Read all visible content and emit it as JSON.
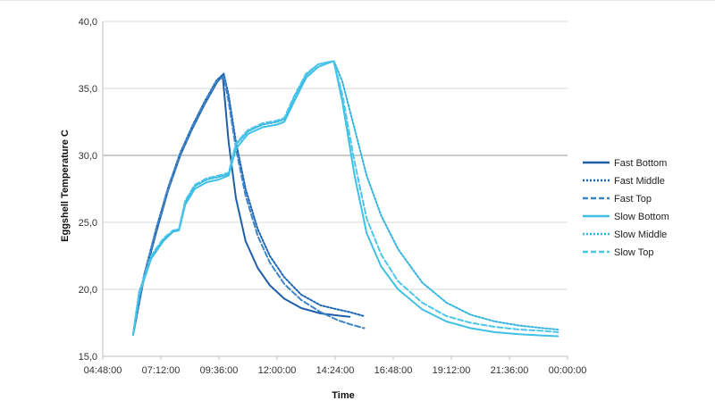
{
  "chart_data": {
    "type": "line",
    "title": "",
    "xlabel": "Time",
    "ylabel": "Eggshell Temperature C",
    "ylim": [
      15,
      40
    ],
    "xlim_hours": [
      4.8,
      24.0
    ],
    "x_tick_labels": [
      "04:48:00",
      "07:12:00",
      "09:36:00",
      "12:00:00",
      "14:24:00",
      "16:48:00",
      "19:12:00",
      "21:36:00",
      "00:00:00"
    ],
    "y_tick_labels": [
      "15,0",
      "20,0",
      "25,0",
      "30,0",
      "35,0",
      "40,0"
    ],
    "y_ticks": [
      15,
      20,
      25,
      30,
      35,
      40
    ],
    "grid": "horizontal",
    "legend_position": "right",
    "series": [
      {
        "name": "Fast Bottom",
        "color": "#1f5fa8",
        "dash": "solid",
        "points": [
          [
            6.05,
            16.6
          ],
          [
            6.5,
            20.8
          ],
          [
            7.0,
            24.2
          ],
          [
            7.5,
            27.4
          ],
          [
            8.0,
            30.0
          ],
          [
            8.5,
            32.0
          ],
          [
            9.0,
            33.8
          ],
          [
            9.5,
            35.4
          ],
          [
            9.75,
            36.0
          ],
          [
            10.0,
            31.0
          ],
          [
            10.3,
            26.8
          ],
          [
            10.7,
            23.6
          ],
          [
            11.2,
            21.6
          ],
          [
            11.7,
            20.3
          ],
          [
            12.3,
            19.3
          ],
          [
            13.0,
            18.6
          ],
          [
            13.8,
            18.2
          ],
          [
            14.5,
            18.05
          ],
          [
            15.0,
            17.95
          ]
        ]
      },
      {
        "name": "Fast Middle",
        "color": "#1f66b5",
        "dash": "2,2",
        "points": [
          [
            6.05,
            16.6
          ],
          [
            6.5,
            21.0
          ],
          [
            7.0,
            24.5
          ],
          [
            7.5,
            27.6
          ],
          [
            8.0,
            30.2
          ],
          [
            8.5,
            32.2
          ],
          [
            9.0,
            34.0
          ],
          [
            9.5,
            35.6
          ],
          [
            9.8,
            36.1
          ],
          [
            10.0,
            34.5
          ],
          [
            10.3,
            31.0
          ],
          [
            10.7,
            27.5
          ],
          [
            11.2,
            24.5
          ],
          [
            11.7,
            22.5
          ],
          [
            12.3,
            20.9
          ],
          [
            13.0,
            19.6
          ],
          [
            13.8,
            18.8
          ],
          [
            14.5,
            18.5
          ],
          [
            15.0,
            18.3
          ],
          [
            15.6,
            18.0
          ]
        ]
      },
      {
        "name": "Fast Top",
        "color": "#3d85c6",
        "dash": "6,3",
        "points": [
          [
            6.05,
            16.6
          ],
          [
            6.5,
            20.9
          ],
          [
            7.0,
            24.4
          ],
          [
            7.5,
            27.5
          ],
          [
            8.0,
            30.1
          ],
          [
            8.5,
            32.1
          ],
          [
            9.0,
            33.9
          ],
          [
            9.5,
            35.5
          ],
          [
            9.8,
            35.9
          ],
          [
            10.0,
            34.0
          ],
          [
            10.3,
            30.5
          ],
          [
            10.7,
            27.0
          ],
          [
            11.2,
            24.0
          ],
          [
            11.7,
            22.0
          ],
          [
            12.3,
            20.4
          ],
          [
            13.0,
            19.2
          ],
          [
            13.8,
            18.3
          ],
          [
            14.5,
            17.7
          ],
          [
            15.0,
            17.4
          ],
          [
            15.6,
            17.1
          ]
        ]
      },
      {
        "name": "Slow Bottom",
        "color": "#3fc0e4",
        "dash": "solid",
        "points": [
          [
            6.05,
            16.6
          ],
          [
            6.3,
            19.6
          ],
          [
            6.8,
            22.3
          ],
          [
            7.3,
            23.6
          ],
          [
            7.7,
            24.3
          ],
          [
            7.95,
            24.4
          ],
          [
            8.2,
            26.3
          ],
          [
            8.6,
            27.5
          ],
          [
            9.1,
            28.0
          ],
          [
            9.6,
            28.2
          ],
          [
            10.0,
            28.5
          ],
          [
            10.3,
            30.5
          ],
          [
            10.8,
            31.6
          ],
          [
            11.4,
            32.1
          ],
          [
            12.0,
            32.3
          ],
          [
            12.3,
            32.5
          ],
          [
            12.7,
            34.0
          ],
          [
            13.2,
            35.8
          ],
          [
            13.7,
            36.6
          ],
          [
            14.2,
            36.95
          ],
          [
            14.35,
            37.0
          ],
          [
            14.7,
            34.0
          ],
          [
            15.2,
            28.5
          ],
          [
            15.7,
            24.2
          ],
          [
            16.3,
            21.7
          ],
          [
            17.0,
            20.0
          ],
          [
            18.0,
            18.5
          ],
          [
            19.0,
            17.6
          ],
          [
            20.0,
            17.1
          ],
          [
            21.0,
            16.8
          ],
          [
            22.0,
            16.65
          ],
          [
            23.0,
            16.55
          ],
          [
            23.6,
            16.5
          ]
        ]
      },
      {
        "name": "Slow Middle",
        "color": "#33b5e0",
        "dash": "2,2",
        "points": [
          [
            6.05,
            16.6
          ],
          [
            6.3,
            19.8
          ],
          [
            6.8,
            22.4
          ],
          [
            7.3,
            23.7
          ],
          [
            7.7,
            24.3
          ],
          [
            7.95,
            24.5
          ],
          [
            8.2,
            26.5
          ],
          [
            8.6,
            27.7
          ],
          [
            9.1,
            28.2
          ],
          [
            9.6,
            28.4
          ],
          [
            10.0,
            28.6
          ],
          [
            10.3,
            30.8
          ],
          [
            10.8,
            31.8
          ],
          [
            11.4,
            32.3
          ],
          [
            12.0,
            32.5
          ],
          [
            12.3,
            32.7
          ],
          [
            12.7,
            34.3
          ],
          [
            13.2,
            36.0
          ],
          [
            13.7,
            36.8
          ],
          [
            14.2,
            37.0
          ],
          [
            14.35,
            37.05
          ],
          [
            14.7,
            35.5
          ],
          [
            15.2,
            32.0
          ],
          [
            15.7,
            28.5
          ],
          [
            16.3,
            25.5
          ],
          [
            17.0,
            23.0
          ],
          [
            18.0,
            20.5
          ],
          [
            19.0,
            19.0
          ],
          [
            20.0,
            18.1
          ],
          [
            21.0,
            17.6
          ],
          [
            22.0,
            17.3
          ],
          [
            23.0,
            17.1
          ],
          [
            23.6,
            17.0
          ]
        ]
      },
      {
        "name": "Slow Top",
        "color": "#4cc6ea",
        "dash": "6,3",
        "points": [
          [
            6.05,
            16.6
          ],
          [
            6.3,
            19.7
          ],
          [
            6.8,
            22.5
          ],
          [
            7.3,
            23.8
          ],
          [
            7.7,
            24.4
          ],
          [
            7.95,
            24.5
          ],
          [
            8.2,
            26.6
          ],
          [
            8.6,
            27.8
          ],
          [
            9.1,
            28.3
          ],
          [
            9.6,
            28.5
          ],
          [
            10.0,
            28.7
          ],
          [
            10.3,
            30.9
          ],
          [
            10.8,
            31.9
          ],
          [
            11.4,
            32.4
          ],
          [
            12.0,
            32.6
          ],
          [
            12.3,
            32.8
          ],
          [
            12.7,
            34.4
          ],
          [
            13.2,
            36.1
          ],
          [
            13.7,
            36.8
          ],
          [
            14.2,
            37.0
          ],
          [
            14.35,
            37.0
          ],
          [
            14.7,
            34.5
          ],
          [
            15.2,
            29.5
          ],
          [
            15.7,
            25.3
          ],
          [
            16.3,
            22.6
          ],
          [
            17.0,
            20.6
          ],
          [
            18.0,
            19.0
          ],
          [
            19.0,
            18.0
          ],
          [
            20.0,
            17.5
          ],
          [
            21.0,
            17.2
          ],
          [
            22.0,
            17.0
          ],
          [
            23.0,
            16.9
          ],
          [
            23.6,
            16.8
          ]
        ]
      }
    ]
  }
}
